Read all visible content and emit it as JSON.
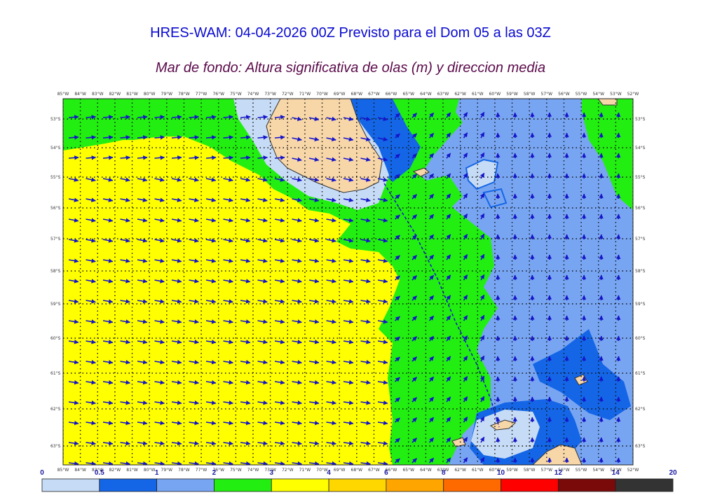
{
  "header": {
    "title": "HRES-WAM: 04-04-2026 00Z Previsto para el Dom 05 a las 03Z",
    "subtitle": "Mar de fondo: Altura significativa de olas (m) y direccion media"
  },
  "map": {
    "lon_labels": [
      "85°W",
      "84°W",
      "83°W",
      "82°W",
      "81°W",
      "80°W",
      "79°W",
      "78°W",
      "77°W",
      "76°W",
      "75°W",
      "74°W",
      "73°W",
      "72°W",
      "71°W",
      "70°W",
      "69°W",
      "68°W",
      "67°W",
      "66°W",
      "65°W",
      "64°W",
      "63°W",
      "62°W",
      "61°W",
      "60°W",
      "59°W",
      "58°W",
      "57°W",
      "56°W",
      "55°W",
      "54°W",
      "53°W",
      "52°W"
    ],
    "lat_labels": [
      "53°S",
      "54°S",
      "55°S",
      "56°S",
      "57°S",
      "58°S",
      "59°S",
      "60°S",
      "61°S",
      "62°S",
      "63°S"
    ],
    "colors": {
      "land": "#f7d6a8",
      "coast": "#333333",
      "grid": "#111111",
      "arrow": "#1515c8"
    }
  },
  "colorbar": {
    "tick_labels": [
      "0",
      "0.5",
      "1",
      "2",
      "3",
      "4",
      "6",
      "8",
      "10",
      "12",
      "14",
      "20"
    ],
    "colors": [
      "#c6dbf5",
      "#1466e6",
      "#78a5f2",
      "#22ee11",
      "#ffff00",
      "#ffd700",
      "#ffa500",
      "#ff6a00",
      "#ff0000",
      "#7a0a0a",
      "#333333"
    ]
  }
}
